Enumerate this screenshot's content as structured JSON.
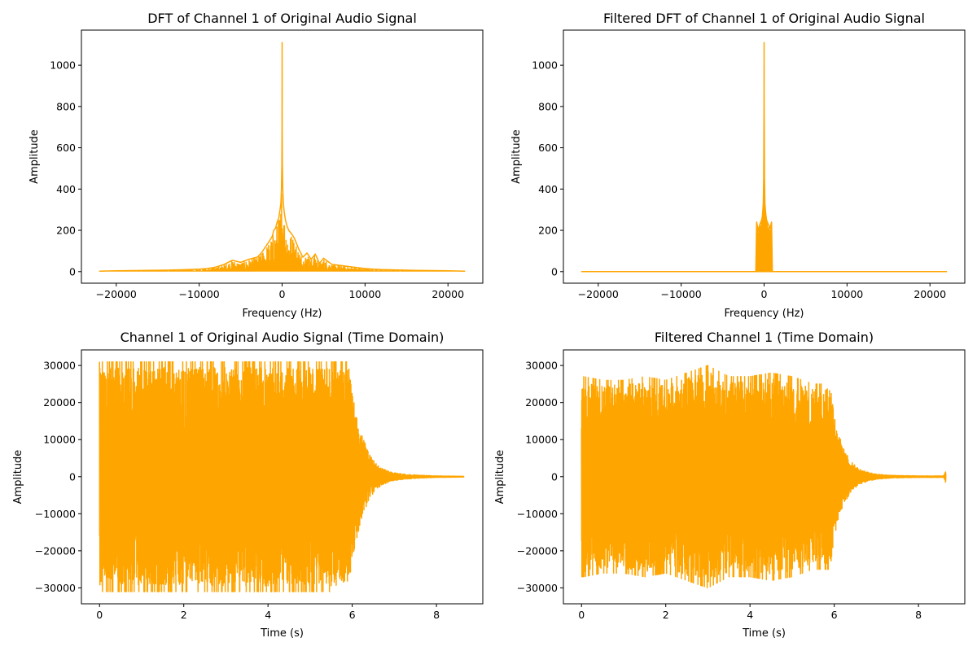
{
  "chart_data": [
    {
      "type": "line",
      "title": "DFT of Channel 1 of Original Audio Signal",
      "xlabel": "Frequency (Hz)",
      "ylabel": "Amplitude",
      "xlim": [
        -24200,
        24200
      ],
      "ylim": [
        -56,
        1170
      ],
      "xticks": [
        -20000,
        -10000,
        0,
        10000,
        20000
      ],
      "yticks": [
        0,
        200,
        400,
        600,
        800,
        1000
      ],
      "grid": false,
      "color": "#ffa500",
      "series": [
        {
          "x": [
            -22050,
            -20000,
            -18000,
            -16000,
            -14000,
            -12000,
            -10000,
            -9000,
            -8000,
            -7000,
            -6000,
            -5000,
            -4000,
            -3000,
            -2500,
            -2000,
            -1500,
            -1200,
            -1000,
            -800,
            -600,
            -400,
            -250,
            -150,
            -80,
            -30,
            -10,
            0,
            10,
            30,
            80,
            150,
            250,
            400,
            600,
            800,
            1000,
            1200,
            1500,
            2000,
            2500,
            3000,
            3500,
            4000,
            4500,
            5000,
            5500,
            6000,
            7000,
            8000,
            9000,
            10000,
            11000,
            12000,
            14000,
            16000,
            18000,
            20000,
            22050
          ],
          "y": [
            2,
            4,
            5,
            6,
            7,
            9,
            12,
            15,
            22,
            35,
            55,
            45,
            60,
            70,
            90,
            120,
            150,
            170,
            200,
            210,
            240,
            260,
            300,
            330,
            400,
            520,
            700,
            1110,
            700,
            520,
            400,
            330,
            290,
            250,
            220,
            200,
            190,
            180,
            160,
            110,
            70,
            90,
            60,
            85,
            40,
            65,
            50,
            35,
            30,
            25,
            20,
            15,
            12,
            10,
            8,
            6,
            5,
            4,
            2
          ]
        }
      ]
    },
    {
      "type": "line",
      "title": "Filtered DFT of Channel 1 of Original Audio Signal",
      "xlabel": "Frequency (Hz)",
      "ylabel": "Amplitude",
      "xlim": [
        -24200,
        24200
      ],
      "ylim": [
        -56,
        1170
      ],
      "xticks": [
        -20000,
        -10000,
        0,
        10000,
        20000
      ],
      "yticks": [
        0,
        200,
        400,
        600,
        800,
        1000
      ],
      "grid": false,
      "color": "#ffa500",
      "series": [
        {
          "x": [
            -22050,
            -1000,
            -900,
            -700,
            -500,
            -300,
            -200,
            -100,
            -50,
            -10,
            0,
            10,
            50,
            100,
            200,
            300,
            500,
            700,
            900,
            1000,
            22050
          ],
          "y": [
            0,
            0,
            240,
            200,
            230,
            250,
            270,
            330,
            450,
            800,
            1110,
            800,
            450,
            330,
            280,
            250,
            230,
            210,
            240,
            0,
            0
          ]
        }
      ]
    },
    {
      "type": "line",
      "title": "Channel 1 of Original Audio Signal (Time Domain)",
      "xlabel": "Time (s)",
      "ylabel": "Amplitude",
      "xlim": [
        -0.43,
        9.1
      ],
      "ylim": [
        -34300,
        34200
      ],
      "xticks": [
        0,
        2,
        4,
        6,
        8
      ],
      "yticks": [
        -30000,
        -20000,
        -10000,
        0,
        10000,
        20000,
        30000
      ],
      "grid": false,
      "color": "#ffa500",
      "series": [
        {
          "x": [
            0,
            0.05,
            0.5,
            1.0,
            1.5,
            2.0,
            2.5,
            3.0,
            3.5,
            4.0,
            4.5,
            5.0,
            5.5,
            5.9,
            6.0,
            6.2,
            6.4,
            6.6,
            6.8,
            7.0,
            7.3,
            7.6,
            8.0,
            8.65
          ],
          "y": [
            31000,
            31000,
            31000,
            31000,
            31000,
            31000,
            31000,
            31000,
            31000,
            31000,
            31000,
            31000,
            31000,
            31000,
            22000,
            12000,
            6000,
            3000,
            1800,
            1000,
            600,
            400,
            200,
            100
          ]
        }
      ]
    },
    {
      "type": "line",
      "title": "Filtered Channel 1 (Time Domain)",
      "xlabel": "Time (s)",
      "ylabel": "Amplitude",
      "xlim": [
        -0.43,
        9.1
      ],
      "ylim": [
        -34300,
        34200
      ],
      "xticks": [
        0,
        2,
        4,
        6,
        8
      ],
      "yticks": [
        -30000,
        -20000,
        -10000,
        0,
        10000,
        20000,
        30000
      ],
      "grid": false,
      "color": "#ffa500",
      "series": [
        {
          "x": [
            0,
            0.05,
            0.5,
            1.0,
            1.5,
            2.0,
            2.5,
            3.0,
            3.5,
            4.0,
            4.5,
            5.0,
            5.5,
            5.9,
            6.0,
            6.2,
            6.4,
            6.6,
            6.8,
            7.0,
            7.3,
            7.6,
            8.0,
            8.6,
            8.65
          ],
          "y": [
            27000,
            27000,
            26000,
            26000,
            27000,
            26000,
            28000,
            30000,
            27000,
            27000,
            28000,
            27000,
            25000,
            25000,
            16000,
            8000,
            4000,
            2000,
            1200,
            700,
            400,
            300,
            200,
            200,
            1800
          ]
        }
      ]
    }
  ]
}
